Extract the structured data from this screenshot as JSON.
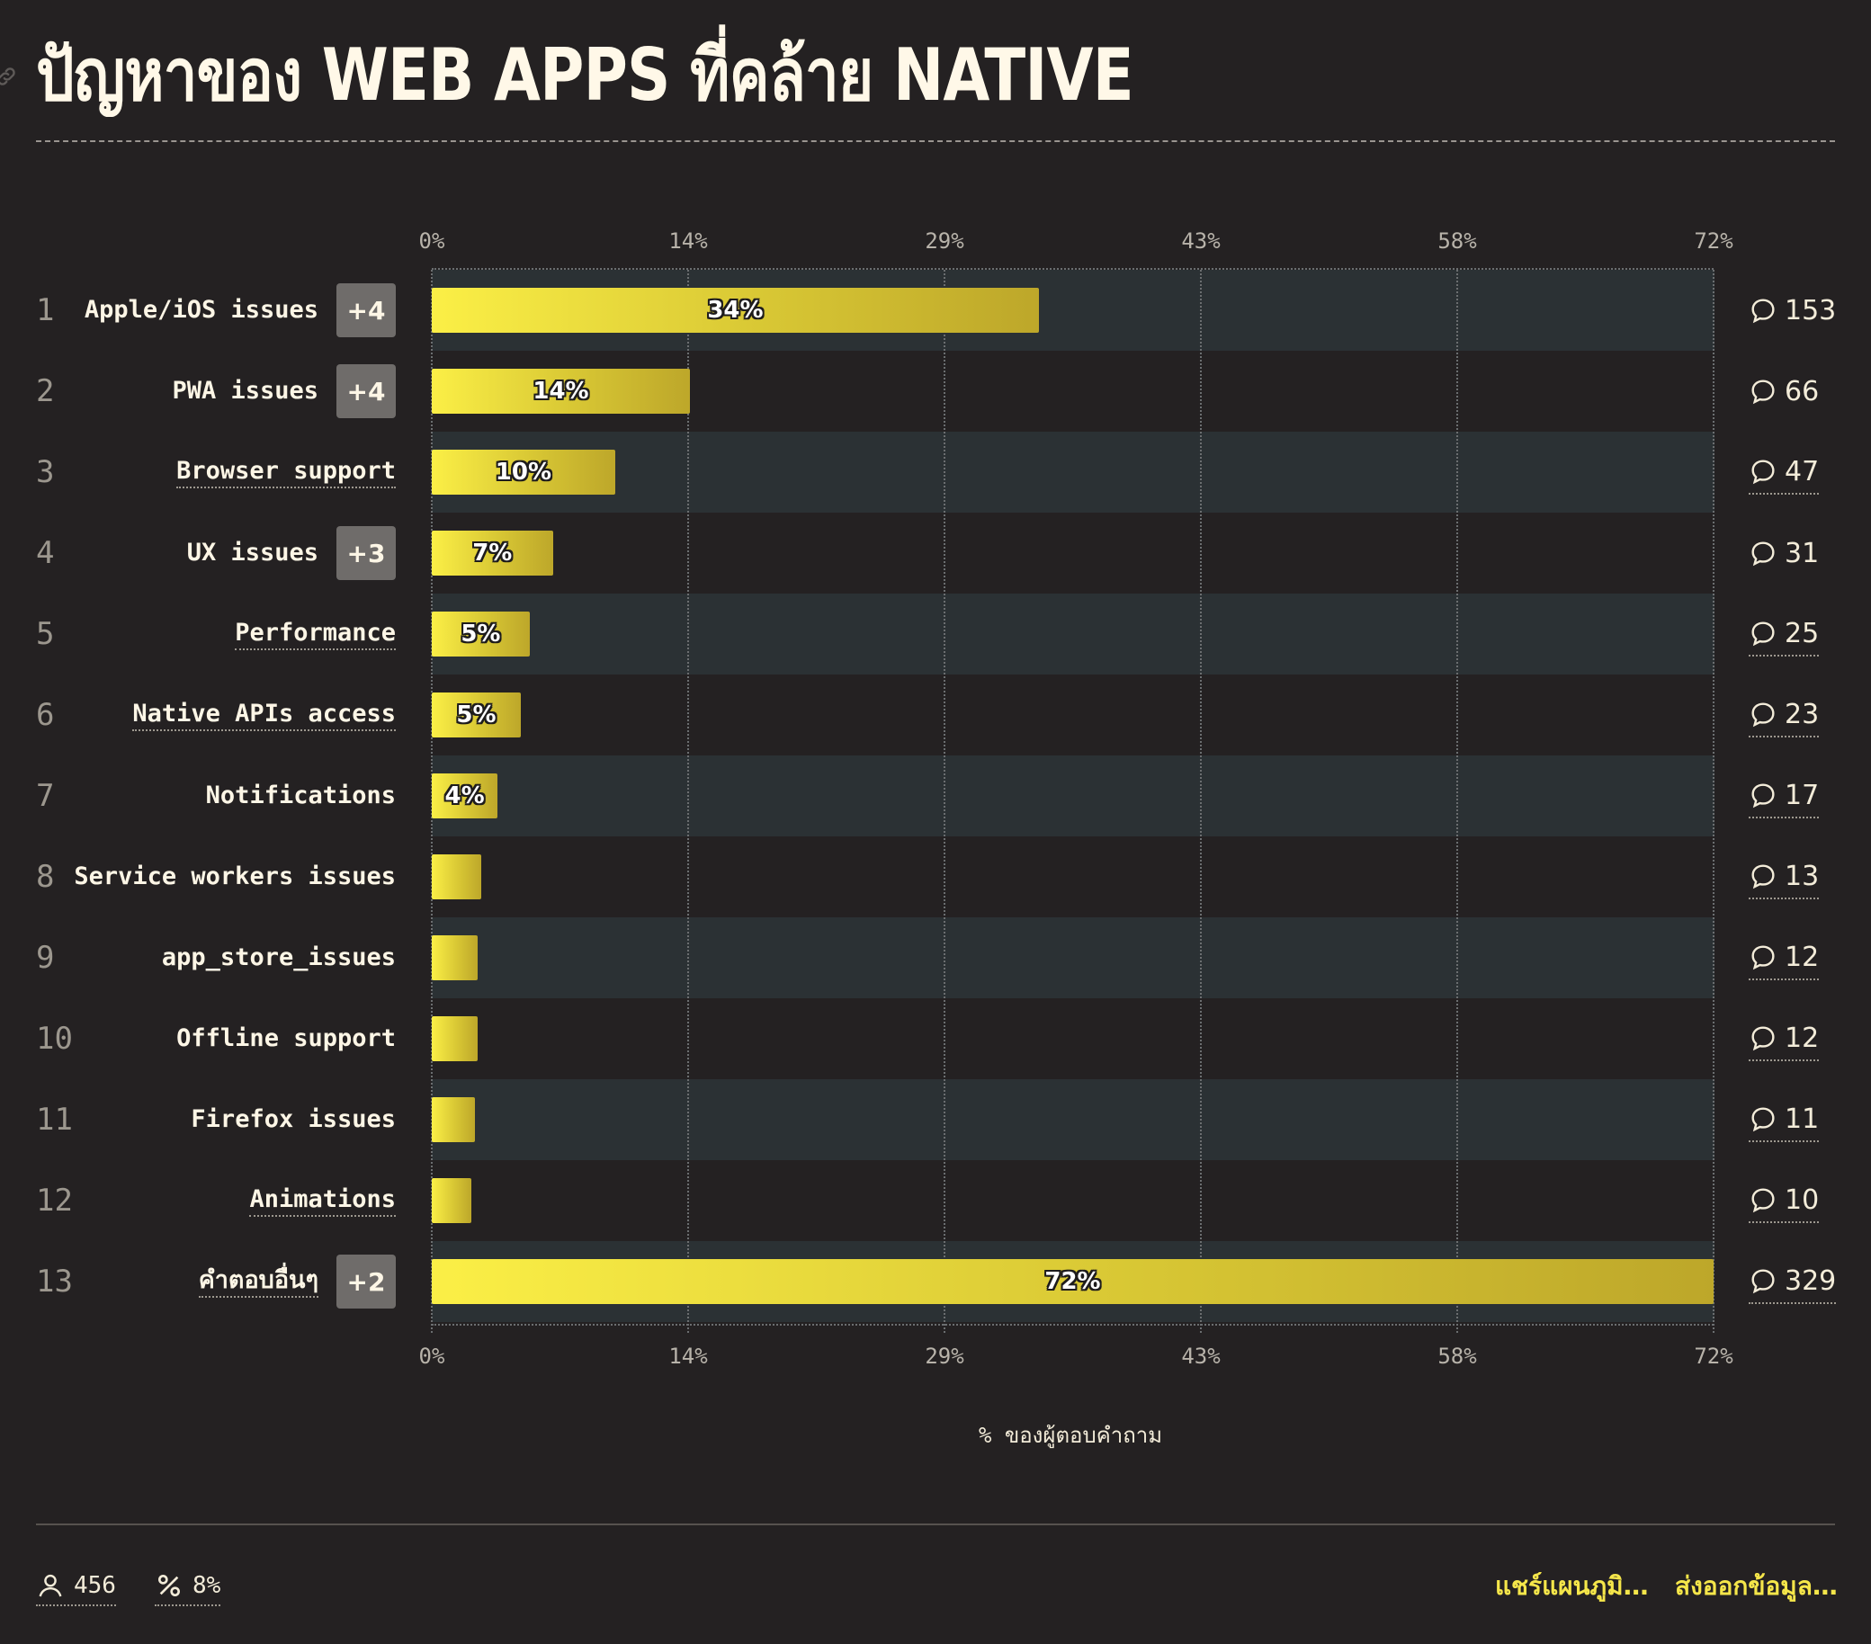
{
  "title": "ปัญหาของ WEB APPS ที่คล้าย NATIVE",
  "colors": {
    "background": "#242122",
    "bar": "#f5e64a",
    "band": "#2b3134",
    "link": "#f5e64a"
  },
  "chart_data": {
    "type": "bar",
    "orientation": "horizontal",
    "title": "ปัญหาของ WEB APPS ที่คล้าย NATIVE",
    "xlabel": "% ของผู้ตอบคำถาม",
    "ylabel": "",
    "xlim": [
      0,
      72
    ],
    "x_ticks": [
      "0%",
      "14%",
      "29%",
      "43%",
      "58%",
      "72%"
    ],
    "tick_values": [
      0,
      14.4,
      28.8,
      43.2,
      57.6,
      72
    ],
    "grid": true,
    "rows": [
      {
        "rank": "1",
        "label": "Apple/iOS issues",
        "extra": "+4",
        "value": 34.1,
        "value_label": "34%",
        "count": "153",
        "dotted": false
      },
      {
        "rank": "2",
        "label": "PWA issues",
        "extra": "+4",
        "value": 14.5,
        "value_label": "14%",
        "count": "66",
        "dotted": false
      },
      {
        "rank": "3",
        "label": "Browser support",
        "extra": "",
        "value": 10.3,
        "value_label": "10%",
        "count": "47",
        "dotted": true
      },
      {
        "rank": "4",
        "label": "UX issues",
        "extra": "+3",
        "value": 6.8,
        "value_label": "7%",
        "count": "31",
        "dotted": false
      },
      {
        "rank": "5",
        "label": "Performance",
        "extra": "",
        "value": 5.5,
        "value_label": "5%",
        "count": "25",
        "dotted": true
      },
      {
        "rank": "6",
        "label": "Native APIs access",
        "extra": "",
        "value": 5.0,
        "value_label": "5%",
        "count": "23",
        "dotted": true
      },
      {
        "rank": "7",
        "label": "Notifications",
        "extra": "",
        "value": 3.7,
        "value_label": "4%",
        "count": "17",
        "dotted": false
      },
      {
        "rank": "8",
        "label": "Service workers issues",
        "extra": "",
        "value": 2.8,
        "value_label": "",
        "count": "13",
        "dotted": false
      },
      {
        "rank": "9",
        "label": "app_store_issues",
        "extra": "",
        "value": 2.6,
        "value_label": "",
        "count": "12",
        "dotted": false
      },
      {
        "rank": "10",
        "label": "Offline support",
        "extra": "",
        "value": 2.6,
        "value_label": "",
        "count": "12",
        "dotted": false
      },
      {
        "rank": "11",
        "label": "Firefox issues",
        "extra": "",
        "value": 2.4,
        "value_label": "",
        "count": "11",
        "dotted": false
      },
      {
        "rank": "12",
        "label": "Animations",
        "extra": "",
        "value": 2.2,
        "value_label": "",
        "count": "10",
        "dotted": true
      },
      {
        "rank": "13",
        "label": "คำตอบอื่นๆ",
        "extra": "+2",
        "value": 72.0,
        "value_label": "72%",
        "count": "329",
        "dotted": true
      }
    ]
  },
  "footer": {
    "respondents": "456",
    "percent": "8%",
    "share_label": "แชร์แผนภูมิ…",
    "export_label": "ส่งออกข้อมูล…"
  },
  "icons": {
    "title": "link-icon",
    "row_count": "comment-icon",
    "respondents": "user-icon",
    "percent": "percent-icon"
  }
}
